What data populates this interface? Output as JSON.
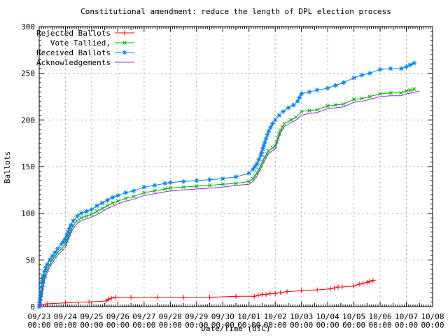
{
  "chart_data": {
    "type": "line",
    "title": "Constitutional amendment: reduce the length of DPL election process",
    "xlabel": "Date/Time (UTC)",
    "ylabel": "Ballots",
    "ylim": [
      0,
      300
    ],
    "y_ticks": [
      0,
      50,
      100,
      150,
      200,
      250,
      300
    ],
    "xlim_days": [
      0,
      15
    ],
    "x_tick_interval": "1 day",
    "x_ticks": [
      {
        "date": "09/23",
        "time": "00:00"
      },
      {
        "date": "09/24",
        "time": "00:00"
      },
      {
        "date": "09/25",
        "time": "00:00"
      },
      {
        "date": "09/26",
        "time": "00:00"
      },
      {
        "date": "09/27",
        "time": "00:00"
      },
      {
        "date": "09/28",
        "time": "00:00"
      },
      {
        "date": "09/29",
        "time": "00:00"
      },
      {
        "date": "09/30",
        "time": "00:00"
      },
      {
        "date": "10/01",
        "time": "00:00"
      },
      {
        "date": "10/02",
        "time": "00:00"
      },
      {
        "date": "10/03",
        "time": "00:00"
      },
      {
        "date": "10/04",
        "time": "00:00"
      },
      {
        "date": "10/05",
        "time": "00:00"
      },
      {
        "date": "10/06",
        "time": "00:00"
      },
      {
        "date": "10/07",
        "time": "00:00"
      },
      {
        "date": "10/08",
        "time": "00:00"
      }
    ],
    "grid": true,
    "legend_position": "top-left",
    "x_units": "days since 09/23 00:00 UTC",
    "series": [
      {
        "name": "Rejected Ballots",
        "color": "#ff0000",
        "marker": "plus",
        "points": [
          [
            0,
            0
          ],
          [
            0.04,
            2
          ],
          [
            0.3,
            3
          ],
          [
            1.0,
            4
          ],
          [
            1.9,
            5
          ],
          [
            2.55,
            6
          ],
          [
            2.65,
            8
          ],
          [
            2.75,
            9
          ],
          [
            2.9,
            10
          ],
          [
            3.5,
            10
          ],
          [
            4.5,
            10
          ],
          [
            5.5,
            10
          ],
          [
            6.5,
            10
          ],
          [
            7.5,
            11
          ],
          [
            8.2,
            11
          ],
          [
            8.35,
            12
          ],
          [
            8.5,
            13
          ],
          [
            8.65,
            13
          ],
          [
            8.8,
            14
          ],
          [
            9.0,
            14
          ],
          [
            9.2,
            15
          ],
          [
            9.45,
            16
          ],
          [
            10.0,
            17
          ],
          [
            10.6,
            18
          ],
          [
            11.1,
            19
          ],
          [
            11.25,
            20
          ],
          [
            11.4,
            21
          ],
          [
            11.55,
            21
          ],
          [
            12.0,
            22
          ],
          [
            12.2,
            24
          ],
          [
            12.35,
            25
          ],
          [
            12.5,
            26
          ],
          [
            12.6,
            27
          ],
          [
            12.73,
            28
          ]
        ]
      },
      {
        "name": "Vote Tallied,",
        "color": "#00b000",
        "marker": "cross",
        "points": [
          [
            0,
            0
          ],
          [
            0.04,
            5
          ],
          [
            0.08,
            12
          ],
          [
            0.12,
            20
          ],
          [
            0.17,
            27
          ],
          [
            0.22,
            33
          ],
          [
            0.3,
            39
          ],
          [
            0.4,
            45
          ],
          [
            0.5,
            50
          ],
          [
            0.6,
            54
          ],
          [
            0.7,
            58
          ],
          [
            0.85,
            62
          ],
          [
            1.0,
            67
          ],
          [
            1.1,
            74
          ],
          [
            1.2,
            81
          ],
          [
            1.3,
            87
          ],
          [
            1.45,
            92
          ],
          [
            1.6,
            95
          ],
          [
            1.8,
            97
          ],
          [
            2.0,
            99
          ],
          [
            2.2,
            102
          ],
          [
            2.4,
            105
          ],
          [
            2.6,
            108
          ],
          [
            2.8,
            111
          ],
          [
            3.0,
            113
          ],
          [
            3.3,
            116
          ],
          [
            3.6,
            118
          ],
          [
            4.0,
            122
          ],
          [
            4.4,
            124
          ],
          [
            4.8,
            126
          ],
          [
            5.0,
            127
          ],
          [
            5.5,
            128
          ],
          [
            6.0,
            129
          ],
          [
            6.5,
            130
          ],
          [
            7.0,
            131
          ],
          [
            7.5,
            132
          ],
          [
            8.0,
            134
          ],
          [
            8.15,
            137
          ],
          [
            8.3,
            143
          ],
          [
            8.45,
            151
          ],
          [
            8.6,
            160
          ],
          [
            8.75,
            167
          ],
          [
            8.9,
            170
          ],
          [
            9.0,
            172
          ],
          [
            9.1,
            181
          ],
          [
            9.2,
            189
          ],
          [
            9.35,
            196
          ],
          [
            9.6,
            200
          ],
          [
            9.8,
            203
          ],
          [
            10.0,
            209
          ],
          [
            10.3,
            210
          ],
          [
            10.6,
            211
          ],
          [
            11.0,
            215
          ],
          [
            11.3,
            216
          ],
          [
            11.6,
            217
          ],
          [
            12.0,
            222
          ],
          [
            12.3,
            223
          ],
          [
            12.6,
            225
          ],
          [
            13.0,
            228
          ],
          [
            13.4,
            229
          ],
          [
            13.8,
            229
          ],
          [
            14.0,
            231
          ],
          [
            14.15,
            232
          ],
          [
            14.3,
            233
          ]
        ]
      },
      {
        "name": "Received Ballots",
        "color": "#0080ff",
        "marker": "star",
        "points": [
          [
            0,
            0
          ],
          [
            0.03,
            8
          ],
          [
            0.06,
            16
          ],
          [
            0.1,
            26
          ],
          [
            0.15,
            33
          ],
          [
            0.2,
            38
          ],
          [
            0.3,
            45
          ],
          [
            0.4,
            50
          ],
          [
            0.5,
            54
          ],
          [
            0.6,
            58
          ],
          [
            0.7,
            62
          ],
          [
            0.85,
            67
          ],
          [
            1.0,
            73
          ],
          [
            1.1,
            80
          ],
          [
            1.2,
            87
          ],
          [
            1.3,
            92
          ],
          [
            1.45,
            97
          ],
          [
            1.6,
            100
          ],
          [
            1.8,
            102
          ],
          [
            2.0,
            104
          ],
          [
            2.2,
            108
          ],
          [
            2.4,
            111
          ],
          [
            2.6,
            114
          ],
          [
            2.8,
            117
          ],
          [
            3.0,
            119
          ],
          [
            3.3,
            122
          ],
          [
            3.6,
            124
          ],
          [
            4.0,
            128
          ],
          [
            4.4,
            130
          ],
          [
            4.8,
            132
          ],
          [
            5.0,
            133
          ],
          [
            5.5,
            134
          ],
          [
            6.0,
            135
          ],
          [
            6.5,
            136
          ],
          [
            7.0,
            137
          ],
          [
            7.5,
            139
          ],
          [
            8.0,
            143
          ],
          [
            8.15,
            147
          ],
          [
            8.3,
            153
          ],
          [
            8.45,
            162
          ],
          [
            8.6,
            176
          ],
          [
            8.75,
            188
          ],
          [
            8.9,
            196
          ],
          [
            9.0,
            200
          ],
          [
            9.15,
            205
          ],
          [
            9.3,
            209
          ],
          [
            9.5,
            213
          ],
          [
            9.7,
            216
          ],
          [
            9.85,
            220
          ],
          [
            10.0,
            228
          ],
          [
            10.3,
            230
          ],
          [
            10.6,
            232
          ],
          [
            11.0,
            234
          ],
          [
            11.3,
            237
          ],
          [
            11.6,
            240
          ],
          [
            12.0,
            245
          ],
          [
            12.3,
            248
          ],
          [
            12.6,
            250
          ],
          [
            13.0,
            254
          ],
          [
            13.4,
            255
          ],
          [
            13.8,
            255
          ],
          [
            14.0,
            257
          ],
          [
            14.15,
            259
          ],
          [
            14.3,
            261
          ]
        ]
      },
      {
        "name": "Acknowledgements",
        "color": "#a020f0",
        "marker": "none",
        "points": [
          [
            0,
            0
          ],
          [
            0.05,
            6
          ],
          [
            0.1,
            13
          ],
          [
            0.15,
            21
          ],
          [
            0.2,
            28
          ],
          [
            0.3,
            36
          ],
          [
            0.4,
            42
          ],
          [
            0.5,
            47
          ],
          [
            0.6,
            51
          ],
          [
            0.7,
            55
          ],
          [
            0.85,
            59
          ],
          [
            1.0,
            64
          ],
          [
            1.1,
            71
          ],
          [
            1.2,
            78
          ],
          [
            1.3,
            84
          ],
          [
            1.45,
            89
          ],
          [
            1.6,
            92
          ],
          [
            1.8,
            94
          ],
          [
            2.0,
            96
          ],
          [
            2.3,
            100
          ],
          [
            2.6,
            105
          ],
          [
            3.0,
            110
          ],
          [
            3.3,
            113
          ],
          [
            3.6,
            115
          ],
          [
            4.0,
            119
          ],
          [
            4.4,
            121
          ],
          [
            4.8,
            123
          ],
          [
            5.0,
            124
          ],
          [
            5.5,
            125
          ],
          [
            6.0,
            126
          ],
          [
            6.5,
            127
          ],
          [
            7.0,
            128
          ],
          [
            7.5,
            130
          ],
          [
            8.0,
            131
          ],
          [
            8.15,
            134
          ],
          [
            8.3,
            140
          ],
          [
            8.45,
            148
          ],
          [
            8.6,
            157
          ],
          [
            8.75,
            164
          ],
          [
            8.9,
            167
          ],
          [
            9.0,
            169
          ],
          [
            9.1,
            178
          ],
          [
            9.2,
            186
          ],
          [
            9.35,
            193
          ],
          [
            9.6,
            197
          ],
          [
            9.8,
            200
          ],
          [
            10.0,
            205
          ],
          [
            10.3,
            207
          ],
          [
            10.6,
            208
          ],
          [
            11.0,
            212
          ],
          [
            11.3,
            213
          ],
          [
            11.6,
            214
          ],
          [
            12.0,
            219
          ],
          [
            12.3,
            220
          ],
          [
            12.6,
            222
          ],
          [
            13.0,
            225
          ],
          [
            13.4,
            226
          ],
          [
            13.8,
            226
          ],
          [
            14.0,
            228
          ],
          [
            14.2,
            229
          ],
          [
            14.5,
            231
          ]
        ]
      }
    ]
  }
}
